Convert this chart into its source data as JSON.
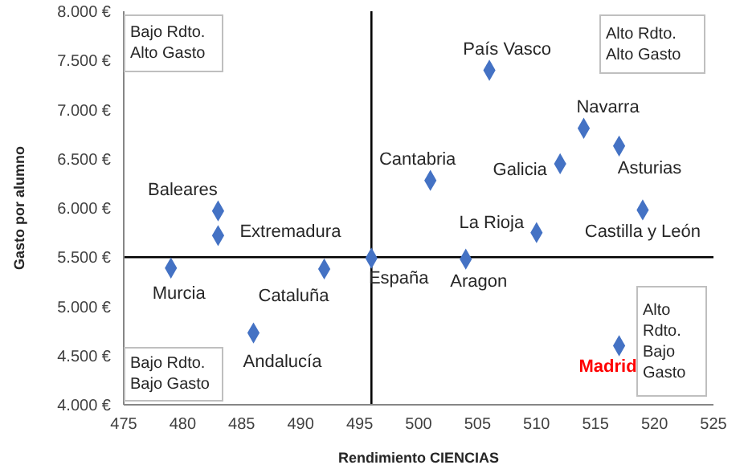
{
  "chart_data": {
    "type": "scatter",
    "xlabel": "Rendimiento CIENCIAS",
    "ylabel": "Gasto por alumno",
    "x": [
      483,
      483,
      479,
      492,
      486,
      496,
      506,
      514,
      517,
      512,
      501,
      519,
      510,
      504,
      517
    ],
    "values": [
      5970,
      5720,
      5390,
      5380,
      4730,
      5490,
      7400,
      6810,
      6630,
      6450,
      6280,
      5980,
      5750,
      5480,
      4600
    ],
    "color": "#4472c4",
    "marker": "diamond",
    "grid": false,
    "legend": false,
    "xlim": [
      475,
      525
    ],
    "xticks": [
      475,
      480,
      485,
      490,
      495,
      500,
      505,
      510,
      515,
      520,
      525
    ],
    "ylim": [
      4000,
      8000
    ],
    "yticks": [
      {
        "value": 4000,
        "label": "4.000 €"
      },
      {
        "value": 4500,
        "label": "4.500 €"
      },
      {
        "value": 5000,
        "label": "5.000 €"
      },
      {
        "value": 5500,
        "label": "5.500 €"
      },
      {
        "value": 6000,
        "label": "6.000 €"
      },
      {
        "value": 6500,
        "label": "6.500 €"
      },
      {
        "value": 7000,
        "label": "7.000 €"
      },
      {
        "value": 7500,
        "label": "7.500 €"
      },
      {
        "value": 8000,
        "label": "8.000 €"
      }
    ],
    "ref_lines": [
      {
        "axis": "x",
        "value": 496,
        "color": "#000000"
      },
      {
        "axis": "y",
        "value": 5500,
        "color": "#000000"
      }
    ],
    "annotations": [
      {
        "text": "Baleares",
        "x": 483,
        "y": 5970
      },
      {
        "text": "Extremadura",
        "x": 483,
        "y": 5720
      },
      {
        "text": "Murcia",
        "x": 479,
        "y": 5390
      },
      {
        "text": "Cataluña",
        "x": 492,
        "y": 5380
      },
      {
        "text": "Andalucía",
        "x": 486,
        "y": 4730
      },
      {
        "text": "España",
        "x": 496,
        "y": 5490
      },
      {
        "text": "País Vasco",
        "x": 506,
        "y": 7400
      },
      {
        "text": "Navarra",
        "x": 514,
        "y": 6810
      },
      {
        "text": "Asturias",
        "x": 517,
        "y": 6630
      },
      {
        "text": "Galicia",
        "x": 512,
        "y": 6450
      },
      {
        "text": "Cantabria",
        "x": 501,
        "y": 6280
      },
      {
        "text": "Castilla y León",
        "x": 519,
        "y": 5980
      },
      {
        "text": "La Rioja",
        "x": 510,
        "y": 5750
      },
      {
        "text": "Aragon",
        "x": 504,
        "y": 5480
      },
      {
        "text": "Madrid",
        "x": 517,
        "y": 4600
      },
      "Bajo Rdto. Alto Gasto",
      "Alto Rdto. Alto Gasto",
      "Bajo Rdto. Bajo Gasto",
      "Alto Rdto. Bajo Gasto"
    ]
  }
}
